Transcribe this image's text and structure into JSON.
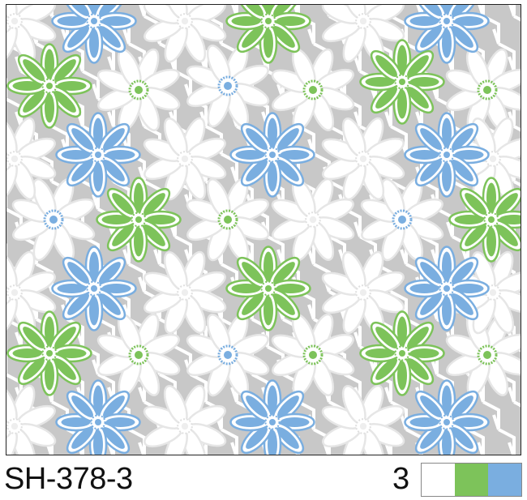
{
  "design_code": "SH-378-3",
  "color_count": "3",
  "colorway": [
    "#ffffff",
    "#7dc35a",
    "#7aaee0"
  ],
  "pattern": {
    "background": "#c8c8c8",
    "motif": "daisy-lace",
    "colors": {
      "lace": "#ffffff",
      "green": "#7dc35a",
      "blue": "#7aaee0"
    }
  }
}
